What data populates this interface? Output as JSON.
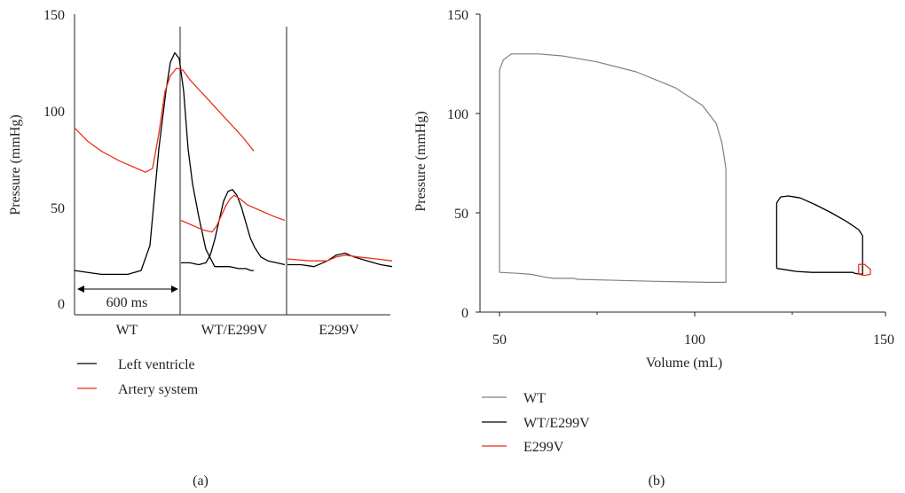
{
  "colors": {
    "left_ventricle": "#000000",
    "artery_system": "#e8321e",
    "wt_loop": "#808080",
    "wt_e299v_loop": "#000000",
    "e299v_loop": "#e8321e",
    "axis": "#231f20"
  },
  "chart_data": [
    {
      "panel": "a",
      "type": "line",
      "caption": "(a)",
      "ylabel": "Pressure (mmHg)",
      "ylim": [
        0,
        150
      ],
      "yticks": [
        "0",
        "50",
        "100",
        "150"
      ],
      "groups": [
        "WT",
        "WT/E299V",
        "E299V"
      ],
      "time_span_label": "600 ms",
      "legend": [
        "Left ventricle",
        "Artery system"
      ],
      "series": [
        {
          "name": "Left ventricle",
          "groups": [
            {
              "t": [
                0,
                30,
                60,
                75,
                85,
                95,
                103,
                108,
                113,
                118,
                123,
                128,
                133,
                140,
                148,
                158,
                166,
                175,
                185,
                193,
                199,
                202
              ],
              "y": [
                17,
                15,
                15,
                17,
                30,
                80,
                110,
                125,
                130,
                127,
                110,
                80,
                62,
                45,
                28,
                19,
                19,
                19,
                18,
                18,
                17,
                17
              ]
            },
            {
              "t": [
                0,
                10,
                20,
                28,
                33,
                38,
                43,
                48,
                53,
                58,
                63,
                68,
                73,
                78,
                83,
                90,
                98,
                108,
                117
              ],
              "y": [
                21,
                21,
                20,
                21,
                25,
                33,
                43,
                53,
                58,
                59,
                56,
                50,
                42,
                34,
                29,
                24,
                22,
                21,
                20
              ]
            },
            {
              "t": [
                0,
                15,
                30,
                45,
                55,
                65,
                75,
                90,
                105,
                118
              ],
              "y": [
                20,
                20,
                19,
                22,
                25,
                26,
                24,
                22,
                20,
                19
              ]
            }
          ]
        },
        {
          "name": "Artery system",
          "groups": [
            {
              "t": [
                0,
                15,
                30,
                50,
                70,
                80,
                88,
                95,
                102,
                108,
                115,
                122,
                130,
                140,
                150,
                160,
                170,
                180,
                190,
                202
              ],
              "y": [
                91,
                84,
                79,
                74,
                70,
                68,
                70,
                88,
                110,
                118,
                122,
                121,
                116,
                111,
                106,
                101,
                96,
                91,
                86,
                79
              ]
            },
            {
              "t": [
                0,
                10,
                25,
                35,
                40,
                45,
                50,
                55,
                60,
                67,
                75,
                85,
                95,
                105,
                117
              ],
              "y": [
                43,
                41,
                38,
                37,
                40,
                45,
                50,
                54,
                56,
                54,
                51,
                49,
                47,
                45,
                43
              ]
            },
            {
              "t": [
                0,
                25,
                45,
                55,
                65,
                80,
                100,
                118
              ],
              "y": [
                23,
                22,
                22,
                24,
                25,
                24,
                23,
                22
              ]
            }
          ]
        }
      ]
    },
    {
      "panel": "b",
      "type": "line",
      "caption": "(b)",
      "xlabel": "Volume (mL)",
      "ylabel": "Pressure (mmHg)",
      "xlim": [
        50,
        150
      ],
      "ylim": [
        0,
        150
      ],
      "xticks": [
        "50",
        "100",
        "150"
      ],
      "yticks": [
        "0",
        "50",
        "100",
        "150"
      ],
      "legend": [
        "WT",
        "WT/E299V",
        "E299V"
      ],
      "series": [
        {
          "name": "WT",
          "x": [
            50,
            50,
            51,
            53,
            56,
            60,
            66,
            75,
            85,
            95,
            102,
            105.5,
            107,
            108,
            108,
            108,
            103,
            90,
            80,
            70,
            69,
            64,
            62,
            58,
            55,
            50
          ],
          "y": [
            20,
            122,
            127,
            130,
            130,
            130,
            129,
            126,
            121,
            113,
            104,
            95,
            85,
            72,
            40,
            15,
            15,
            15.5,
            16,
            16.5,
            17,
            17,
            17.5,
            19,
            19.5,
            20
          ]
        },
        {
          "name": "WT/E299V",
          "x": [
            121,
            121,
            122,
            124,
            127,
            131,
            135,
            139,
            142,
            143,
            143,
            141,
            140.5,
            139,
            135,
            130,
            126,
            121
          ],
          "y": [
            22,
            55,
            58,
            58.5,
            57.5,
            54,
            50,
            45.5,
            41.5,
            38.5,
            19,
            19.5,
            20,
            20,
            20,
            20,
            20.5,
            22
          ]
        },
        {
          "name": "E299V",
          "x": [
            142,
            142,
            143.5,
            145,
            145,
            143.5,
            142
          ],
          "y": [
            19,
            24,
            24,
            21.5,
            19,
            18.5,
            19
          ]
        }
      ]
    }
  ]
}
